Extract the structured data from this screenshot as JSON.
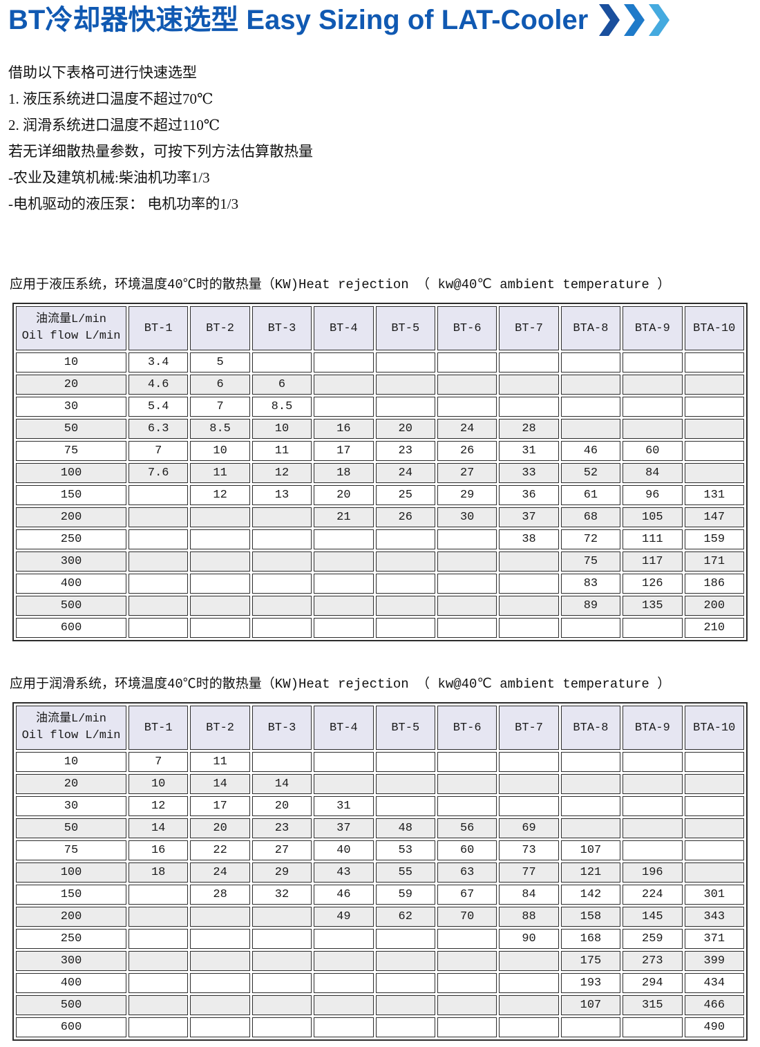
{
  "header": {
    "title": "BT冷却器快速选型 Easy Sizing of LAT-Cooler",
    "chevron_icon": "triple-chevron-right"
  },
  "intro": [
    "借助以下表格可进行快速选型",
    "1. 液压系统进口温度不超过70℃",
    "2. 润滑系统进口温度不超过110℃",
    "若无详细散热量参数，可按下列方法估算散热量",
    "-农业及建筑机械:柴油机功率1/3",
    "-电机驱动的液压泵： 电机功率的1/3"
  ],
  "row_header": {
    "line1": "油流量L/min",
    "line2": "Oil flow L/min"
  },
  "columns": [
    "BT-1",
    "BT-2",
    "BT-3",
    "BT-4",
    "BT-5",
    "BT-6",
    "BT-7",
    "BTA-8",
    "BTA-9",
    "BTA-10"
  ],
  "tables": [
    {
      "caption": "应用于液压系统，环境温度40℃时的散热量（KW)Heat rejection （ kw@40℃ ambient temperature ）",
      "rows": [
        {
          "flow": "10",
          "values": [
            "3.4",
            "5",
            "",
            "",
            "",
            "",
            "",
            "",
            "",
            ""
          ]
        },
        {
          "flow": "20",
          "values": [
            "4.6",
            "6",
            "6",
            "",
            "",
            "",
            "",
            "",
            "",
            ""
          ]
        },
        {
          "flow": "30",
          "values": [
            "5.4",
            "7",
            "8.5",
            "",
            "",
            "",
            "",
            "",
            "",
            ""
          ]
        },
        {
          "flow": "50",
          "values": [
            "6.3",
            "8.5",
            "10",
            "16",
            "20",
            "24",
            "28",
            "",
            "",
            ""
          ]
        },
        {
          "flow": "75",
          "values": [
            "7",
            "10",
            "11",
            "17",
            "23",
            "26",
            "31",
            "46",
            "60",
            ""
          ]
        },
        {
          "flow": "100",
          "values": [
            "7.6",
            "11",
            "12",
            "18",
            "24",
            "27",
            "33",
            "52",
            "84",
            ""
          ]
        },
        {
          "flow": "150",
          "values": [
            "",
            "12",
            "13",
            "20",
            "25",
            "29",
            "36",
            "61",
            "96",
            "131"
          ]
        },
        {
          "flow": "200",
          "values": [
            "",
            "",
            "",
            "21",
            "26",
            "30",
            "37",
            "68",
            "105",
            "147"
          ]
        },
        {
          "flow": "250",
          "values": [
            "",
            "",
            "",
            "",
            "",
            "",
            "38",
            "72",
            "111",
            "159"
          ]
        },
        {
          "flow": "300",
          "values": [
            "",
            "",
            "",
            "",
            "",
            "",
            "",
            "75",
            "117",
            "171"
          ]
        },
        {
          "flow": "400",
          "values": [
            "",
            "",
            "",
            "",
            "",
            "",
            "",
            "83",
            "126",
            "186"
          ]
        },
        {
          "flow": "500",
          "values": [
            "",
            "",
            "",
            "",
            "",
            "",
            "",
            "89",
            "135",
            "200"
          ]
        },
        {
          "flow": "600",
          "values": [
            "",
            "",
            "",
            "",
            "",
            "",
            "",
            "",
            "",
            "210"
          ]
        }
      ]
    },
    {
      "caption": "应用于润滑系统，环境温度40℃时的散热量（KW)Heat rejection （ kw@40℃ ambient temperature ）",
      "rows": [
        {
          "flow": "10",
          "values": [
            "7",
            "11",
            "",
            "",
            "",
            "",
            "",
            "",
            "",
            ""
          ]
        },
        {
          "flow": "20",
          "values": [
            "10",
            "14",
            "14",
            "",
            "",
            "",
            "",
            "",
            "",
            ""
          ]
        },
        {
          "flow": "30",
          "values": [
            "12",
            "17",
            "20",
            "31",
            "",
            "",
            "",
            "",
            "",
            ""
          ]
        },
        {
          "flow": "50",
          "values": [
            "14",
            "20",
            "23",
            "37",
            "48",
            "56",
            "69",
            "",
            "",
            ""
          ]
        },
        {
          "flow": "75",
          "values": [
            "16",
            "22",
            "27",
            "40",
            "53",
            "60",
            "73",
            "107",
            "",
            ""
          ]
        },
        {
          "flow": "100",
          "values": [
            "18",
            "24",
            "29",
            "43",
            "55",
            "63",
            "77",
            "121",
            "196",
            ""
          ]
        },
        {
          "flow": "150",
          "values": [
            "",
            "28",
            "32",
            "46",
            "59",
            "67",
            "84",
            "142",
            "224",
            "301"
          ]
        },
        {
          "flow": "200",
          "values": [
            "",
            "",
            "",
            "49",
            "62",
            "70",
            "88",
            "158",
            "145",
            "343"
          ]
        },
        {
          "flow": "250",
          "values": [
            "",
            "",
            "",
            "",
            "",
            "",
            "90",
            "168",
            "259",
            "371"
          ]
        },
        {
          "flow": "300",
          "values": [
            "",
            "",
            "",
            "",
            "",
            "",
            "",
            "175",
            "273",
            "399"
          ]
        },
        {
          "flow": "400",
          "values": [
            "",
            "",
            "",
            "",
            "",
            "",
            "",
            "193",
            "294",
            "434"
          ]
        },
        {
          "flow": "500",
          "values": [
            "",
            "",
            "",
            "",
            "",
            "",
            "",
            "107",
            "315",
            "466"
          ]
        },
        {
          "flow": "600",
          "values": [
            "",
            "",
            "",
            "",
            "",
            "",
            "",
            "",
            "",
            "490"
          ]
        }
      ]
    }
  ],
  "colors": {
    "title_blue": "#1059b2",
    "chevron_dark": "#1a4f9d",
    "chevron_mid": "#1e7ac9",
    "chevron_light": "#45aadf",
    "table_border": "#2b2b2b",
    "header_bg": "#e6e6f2",
    "row_alt_bg": "#ececec",
    "text": "#1a1a1a"
  }
}
